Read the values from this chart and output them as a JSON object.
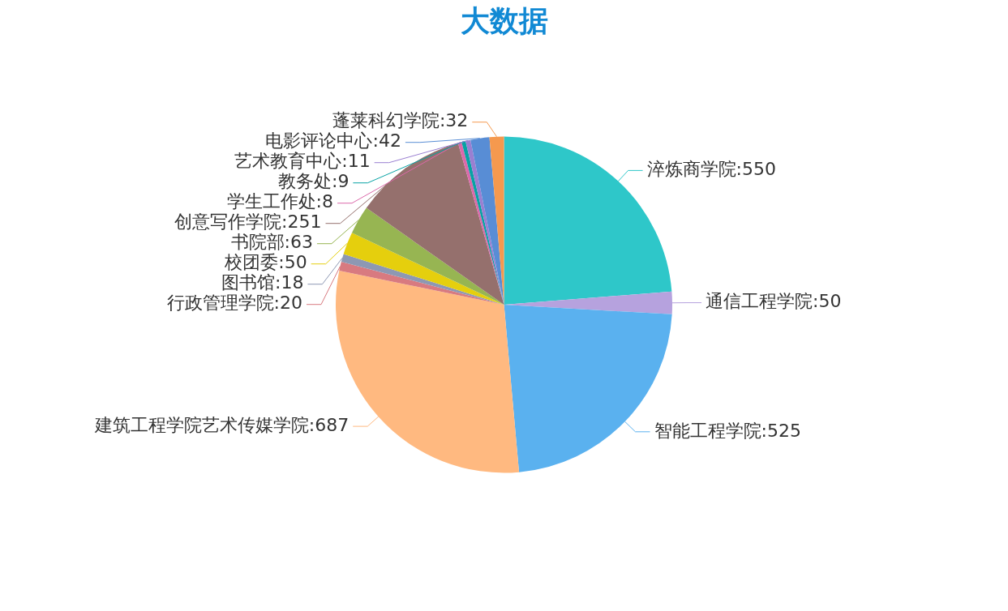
{
  "chart_data": {
    "type": "pie",
    "title": "大数据",
    "categories": [
      "淬炼商学院:550",
      "通信工程学院:50",
      "智能工程学院:525",
      "建筑工程学院艺术传媒学院:687",
      "行政管理学院:20",
      "图书馆:18",
      "校团委:50",
      "书院部:63",
      "创意写作学院:251",
      "学生工作处:8",
      "教务处:9",
      "艺术教育中心:11",
      "电影评论中心:42",
      "蓬莱科幻学院:32"
    ],
    "values": [
      550,
      50,
      525,
      687,
      20,
      18,
      50,
      63,
      251,
      8,
      9,
      11,
      42,
      32
    ],
    "colors": [
      "#2ec7c9",
      "#b6a2de",
      "#5ab1ef",
      "#ffb980",
      "#d87a80",
      "#8d98b3",
      "#e5cf0d",
      "#97b552",
      "#95706d",
      "#dc69aa",
      "#07a2a4",
      "#9a7fd1",
      "#588dd5",
      "#f5994e"
    ],
    "legend": false
  }
}
